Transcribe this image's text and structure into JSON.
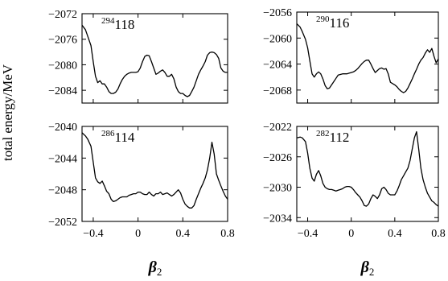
{
  "ylabel": "total energy/MeV",
  "xlabel": {
    "symbol": "β",
    "subscript": "2"
  },
  "chart_data": [
    {
      "type": "line",
      "label": {
        "mass": "294",
        "element": "118"
      },
      "xlim": [
        -0.5,
        0.8
      ],
      "ylim": [
        -2086,
        -2072
      ],
      "xticks": [
        -0.4,
        0,
        0.4,
        0.8
      ],
      "xtick_labels": [
        "−0.4",
        "0",
        "0.4",
        "0.8"
      ],
      "yticks": [
        -2084,
        -2080,
        -2076,
        -2072
      ],
      "ytick_labels": [
        "−2084",
        "−2080",
        "−2076",
        "−2072"
      ],
      "x": [
        -0.5,
        -0.47,
        -0.45,
        -0.42,
        -0.4,
        -0.38,
        -0.36,
        -0.34,
        -0.32,
        -0.3,
        -0.28,
        -0.26,
        -0.24,
        -0.22,
        -0.2,
        -0.18,
        -0.16,
        -0.14,
        -0.12,
        -0.1,
        -0.08,
        -0.06,
        -0.04,
        -0.02,
        0,
        0.02,
        0.04,
        0.06,
        0.08,
        0.1,
        0.12,
        0.14,
        0.16,
        0.18,
        0.2,
        0.22,
        0.24,
        0.26,
        0.28,
        0.3,
        0.32,
        0.34,
        0.36,
        0.38,
        0.4,
        0.42,
        0.44,
        0.46,
        0.48,
        0.5,
        0.52,
        0.54,
        0.56,
        0.58,
        0.6,
        0.62,
        0.64,
        0.66,
        0.68,
        0.7,
        0.72,
        0.74,
        0.76,
        0.78,
        0.8
      ],
      "y": [
        -2073.8,
        -2074.5,
        -2075.5,
        -2077.0,
        -2079.5,
        -2081.8,
        -2082.8,
        -2082.5,
        -2083.0,
        -2083.0,
        -2083.5,
        -2084.2,
        -2084.5,
        -2084.5,
        -2084.3,
        -2083.8,
        -2083.0,
        -2082.3,
        -2081.8,
        -2081.5,
        -2081.3,
        -2081.2,
        -2081.2,
        -2081.2,
        -2081.1,
        -2080.5,
        -2079.5,
        -2078.7,
        -2078.5,
        -2078.6,
        -2079.5,
        -2080.5,
        -2081.5,
        -2081.3,
        -2081.0,
        -2080.8,
        -2081.2,
        -2081.8,
        -2081.8,
        -2081.5,
        -2082.2,
        -2083.5,
        -2084.2,
        -2084.5,
        -2084.5,
        -2084.8,
        -2085.0,
        -2084.8,
        -2084.2,
        -2083.5,
        -2082.5,
        -2081.5,
        -2080.8,
        -2080.2,
        -2079.5,
        -2078.5,
        -2078.1,
        -2078.0,
        -2078.1,
        -2078.4,
        -2079.0,
        -2080.5,
        -2081.0,
        -2081.2,
        -2081.2
      ]
    },
    {
      "type": "line",
      "label": {
        "mass": "290",
        "element": "116"
      },
      "xlim": [
        -0.5,
        0.8
      ],
      "ylim": [
        -2070,
        -2056
      ],
      "xticks": [
        -0.4,
        0,
        0.4,
        0.8
      ],
      "xtick_labels": [
        "−0.4",
        "0",
        "0.4",
        "0.8"
      ],
      "yticks": [
        -2068,
        -2064,
        -2060,
        -2056
      ],
      "ytick_labels": [
        "−2068",
        "−2064",
        "−2060",
        "−2056"
      ],
      "x": [
        -0.5,
        -0.47,
        -0.45,
        -0.42,
        -0.4,
        -0.38,
        -0.36,
        -0.34,
        -0.32,
        -0.3,
        -0.28,
        -0.26,
        -0.24,
        -0.22,
        -0.2,
        -0.18,
        -0.16,
        -0.14,
        -0.12,
        -0.1,
        -0.08,
        -0.06,
        -0.04,
        -0.02,
        0,
        0.02,
        0.04,
        0.06,
        0.08,
        0.1,
        0.12,
        0.14,
        0.16,
        0.18,
        0.2,
        0.22,
        0.24,
        0.26,
        0.28,
        0.3,
        0.32,
        0.34,
        0.36,
        0.38,
        0.4,
        0.42,
        0.44,
        0.46,
        0.48,
        0.5,
        0.52,
        0.54,
        0.56,
        0.58,
        0.6,
        0.62,
        0.64,
        0.66,
        0.68,
        0.7,
        0.72,
        0.74,
        0.76,
        0.78,
        0.8
      ],
      "y": [
        -2057.8,
        -2058.3,
        -2059.0,
        -2060.2,
        -2061.5,
        -2063.5,
        -2065.5,
        -2066.0,
        -2065.5,
        -2065.2,
        -2065.5,
        -2066.3,
        -2067.3,
        -2067.8,
        -2067.7,
        -2067.2,
        -2066.7,
        -2066.2,
        -2065.7,
        -2065.6,
        -2065.5,
        -2065.5,
        -2065.5,
        -2065.4,
        -2065.3,
        -2065.2,
        -2065.0,
        -2064.7,
        -2064.3,
        -2063.9,
        -2063.6,
        -2063.4,
        -2063.4,
        -2064.0,
        -2064.7,
        -2065.3,
        -2065.0,
        -2064.7,
        -2064.6,
        -2064.8,
        -2064.7,
        -2065.5,
        -2066.8,
        -2067.0,
        -2067.2,
        -2067.5,
        -2067.9,
        -2068.2,
        -2068.4,
        -2068.2,
        -2067.7,
        -2067.0,
        -2066.3,
        -2065.5,
        -2064.8,
        -2064.0,
        -2063.4,
        -2063.0,
        -2062.3,
        -2061.8,
        -2062.2,
        -2061.6,
        -2062.8,
        -2063.8,
        -2063.2
      ]
    },
    {
      "type": "line",
      "label": {
        "mass": "286",
        "element": "114"
      },
      "xlim": [
        -0.5,
        0.8
      ],
      "ylim": [
        -2052,
        -2040
      ],
      "xticks": [
        -0.4,
        0,
        0.4,
        0.8
      ],
      "xtick_labels": [
        "−0.4",
        "0",
        "0.4",
        "0.8"
      ],
      "yticks": [
        -2052,
        -2048,
        -2044,
        -2040
      ],
      "ytick_labels": [
        "−2052",
        "−2048",
        "−2044",
        "−2040"
      ],
      "x": [
        -0.5,
        -0.47,
        -0.45,
        -0.42,
        -0.4,
        -0.38,
        -0.36,
        -0.34,
        -0.32,
        -0.3,
        -0.28,
        -0.26,
        -0.24,
        -0.22,
        -0.2,
        -0.18,
        -0.16,
        -0.14,
        -0.12,
        -0.1,
        -0.08,
        -0.06,
        -0.04,
        -0.02,
        0,
        0.02,
        0.04,
        0.06,
        0.08,
        0.1,
        0.12,
        0.14,
        0.16,
        0.18,
        0.2,
        0.22,
        0.24,
        0.26,
        0.28,
        0.3,
        0.32,
        0.34,
        0.36,
        0.38,
        0.4,
        0.42,
        0.44,
        0.46,
        0.48,
        0.5,
        0.52,
        0.54,
        0.56,
        0.58,
        0.6,
        0.62,
        0.64,
        0.66,
        0.68,
        0.7,
        0.72,
        0.74,
        0.76,
        0.78,
        0.8
      ],
      "y": [
        -2040.8,
        -2041.2,
        -2041.6,
        -2042.5,
        -2044.5,
        -2046.5,
        -2047.0,
        -2047.2,
        -2046.9,
        -2047.5,
        -2048.2,
        -2048.5,
        -2049.2,
        -2049.5,
        -2049.4,
        -2049.2,
        -2049.0,
        -2048.9,
        -2048.9,
        -2048.9,
        -2048.7,
        -2048.6,
        -2048.5,
        -2048.5,
        -2048.3,
        -2048.3,
        -2048.5,
        -2048.6,
        -2048.6,
        -2048.3,
        -2048.6,
        -2048.8,
        -2048.5,
        -2048.5,
        -2048.3,
        -2048.6,
        -2048.5,
        -2048.4,
        -2048.6,
        -2048.8,
        -2048.6,
        -2048.3,
        -2048.0,
        -2048.4,
        -2049.2,
        -2049.8,
        -2050.1,
        -2050.3,
        -2050.3,
        -2050.0,
        -2049.2,
        -2048.5,
        -2047.8,
        -2047.2,
        -2046.5,
        -2045.5,
        -2044.0,
        -2042.0,
        -2043.5,
        -2046.0,
        -2046.8,
        -2047.5,
        -2048.2,
        -2048.8,
        -2049.2
      ]
    },
    {
      "type": "line",
      "label": {
        "mass": "282",
        "element": "112"
      },
      "xlim": [
        -0.5,
        0.8
      ],
      "ylim": [
        -2034.5,
        -2022
      ],
      "xticks": [
        -0.4,
        0,
        0.4,
        0.8
      ],
      "xtick_labels": [
        "−0.4",
        "0",
        "0.4",
        "0.8"
      ],
      "yticks": [
        -2034,
        -2030,
        -2026,
        -2022
      ],
      "ytick_labels": [
        "−2034",
        "−2030",
        "−2026",
        "−2022"
      ],
      "x": [
        -0.5,
        -0.47,
        -0.45,
        -0.42,
        -0.4,
        -0.38,
        -0.36,
        -0.34,
        -0.32,
        -0.3,
        -0.28,
        -0.26,
        -0.24,
        -0.22,
        -0.2,
        -0.18,
        -0.16,
        -0.14,
        -0.12,
        -0.1,
        -0.08,
        -0.06,
        -0.04,
        -0.02,
        0,
        0.02,
        0.04,
        0.06,
        0.08,
        0.1,
        0.12,
        0.14,
        0.16,
        0.18,
        0.2,
        0.22,
        0.24,
        0.26,
        0.28,
        0.3,
        0.32,
        0.34,
        0.36,
        0.38,
        0.4,
        0.42,
        0.44,
        0.46,
        0.48,
        0.5,
        0.52,
        0.54,
        0.56,
        0.58,
        0.6,
        0.62,
        0.64,
        0.66,
        0.68,
        0.7,
        0.72,
        0.74,
        0.76,
        0.78,
        0.8
      ],
      "y": [
        -2023.5,
        -2023.4,
        -2023.5,
        -2024.0,
        -2025.5,
        -2027.5,
        -2028.8,
        -2029.2,
        -2028.3,
        -2027.8,
        -2028.5,
        -2029.5,
        -2030.0,
        -2030.2,
        -2030.3,
        -2030.3,
        -2030.4,
        -2030.5,
        -2030.4,
        -2030.3,
        -2030.2,
        -2030.0,
        -2029.9,
        -2029.9,
        -2030.0,
        -2030.3,
        -2030.7,
        -2031.0,
        -2031.3,
        -2031.8,
        -2032.4,
        -2032.5,
        -2032.2,
        -2031.5,
        -2031.0,
        -2031.2,
        -2031.5,
        -2031.0,
        -2030.2,
        -2030.0,
        -2030.3,
        -2030.8,
        -2031.0,
        -2031.0,
        -2031.0,
        -2030.5,
        -2029.8,
        -2029.0,
        -2028.5,
        -2028.0,
        -2027.5,
        -2026.5,
        -2025.0,
        -2023.5,
        -2022.7,
        -2025.0,
        -2027.5,
        -2029.0,
        -2030.0,
        -2030.8,
        -2031.3,
        -2031.8,
        -2032.0,
        -2032.3,
        -2032.5
      ]
    }
  ]
}
